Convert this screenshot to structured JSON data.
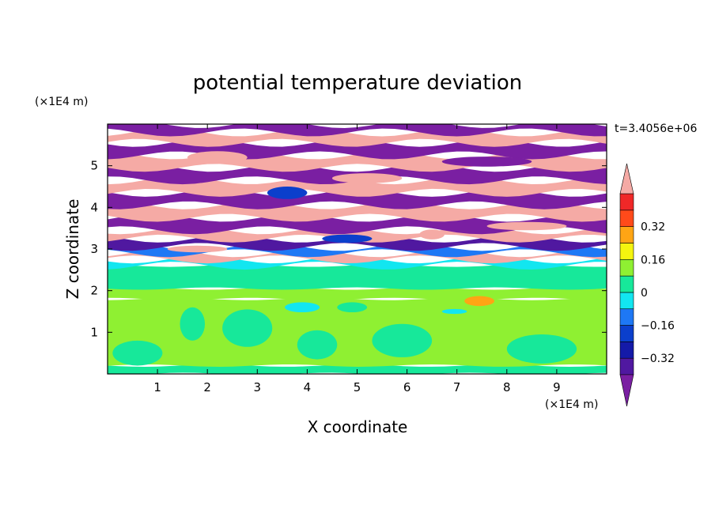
{
  "chart_data": {
    "type": "heatmap",
    "title": "potential temperature deviation",
    "xlabel": "X coordinate",
    "ylabel": "Z coordinate",
    "x_unit": "(×1E4 m)",
    "y_unit": "(×1E4 m)",
    "time_label": "t=3.4056e+06",
    "xlim": [
      0,
      10
    ],
    "ylim": [
      0,
      6
    ],
    "x_ticks": [
      "1",
      "2",
      "3",
      "4",
      "5",
      "6",
      "7",
      "8",
      "9"
    ],
    "y_ticks": [
      "1",
      "2",
      "3",
      "4",
      "5"
    ],
    "colorbar": {
      "tick_labels": [
        "0.32",
        "0.16",
        "0",
        "−0.16",
        "−0.32"
      ],
      "tick_values": [
        0.32,
        0.16,
        0,
        -0.16,
        -0.32
      ],
      "levels": [
        {
          "lo": null,
          "hi": -0.4,
          "color": "#7a1fa2"
        },
        {
          "lo": -0.4,
          "hi": -0.32,
          "color": "#5018a0"
        },
        {
          "lo": -0.32,
          "hi": -0.24,
          "color": "#141aa8"
        },
        {
          "lo": -0.24,
          "hi": -0.16,
          "color": "#0b3fcc"
        },
        {
          "lo": -0.16,
          "hi": -0.08,
          "color": "#1e78f5"
        },
        {
          "lo": -0.08,
          "hi": 0.0,
          "color": "#12e6f0"
        },
        {
          "lo": 0.0,
          "hi": 0.08,
          "color": "#17e89a"
        },
        {
          "lo": 0.08,
          "hi": 0.16,
          "color": "#8ff032"
        },
        {
          "lo": 0.16,
          "hi": 0.24,
          "color": "#f5f50f"
        },
        {
          "lo": 0.24,
          "hi": 0.32,
          "color": "#ffa514"
        },
        {
          "lo": 0.32,
          "hi": 0.4,
          "color": "#ff4a1a"
        },
        {
          "lo": 0.4,
          "hi": 0.48,
          "color": "#f02828"
        },
        {
          "lo": 0.48,
          "hi": null,
          "color": "#f5aaa5"
        }
      ]
    },
    "bands": [
      {
        "z0": 0.0,
        "z1": 0.2,
        "value": 0.04
      },
      {
        "z0": 0.2,
        "z1": 1.8,
        "value": 0.1
      },
      {
        "z0": 1.8,
        "z1": 2.05,
        "value": 0.12
      },
      {
        "z0": 2.05,
        "z1": 2.6,
        "value": 0.04
      },
      {
        "z0": 2.6,
        "z1": 2.75,
        "value": -0.04
      },
      {
        "z0": 2.75,
        "z1": 2.9,
        "value": 0.52
      },
      {
        "z0": 2.9,
        "z1": 3.05,
        "value": -0.12
      },
      {
        "z0": 3.05,
        "z1": 3.25,
        "value": -0.36
      },
      {
        "z0": 3.25,
        "z1": 3.45,
        "value": 0.52
      },
      {
        "z0": 3.45,
        "z1": 3.75,
        "value": -0.44
      },
      {
        "z0": 3.75,
        "z1": 4.05,
        "value": 0.52
      },
      {
        "z0": 4.05,
        "z1": 4.35,
        "value": -0.44
      },
      {
        "z0": 4.35,
        "z1": 4.65,
        "value": 0.52
      },
      {
        "z0": 4.65,
        "z1": 4.95,
        "value": -0.44
      },
      {
        "z0": 4.95,
        "z1": 5.25,
        "value": 0.52
      },
      {
        "z0": 5.25,
        "z1": 5.55,
        "value": -0.44
      },
      {
        "z0": 5.55,
        "z1": 5.8,
        "value": 0.52
      },
      {
        "z0": 5.8,
        "z1": 6.0,
        "value": -0.44
      }
    ],
    "features": [
      {
        "type": "blob",
        "x": 7.45,
        "z": 1.75,
        "rx": 0.3,
        "rz": 0.12,
        "value": 0.28
      },
      {
        "type": "blob",
        "x": 6.95,
        "z": 1.5,
        "rx": 0.25,
        "rz": 0.06,
        "value": -0.04
      },
      {
        "type": "blob",
        "x": 3.9,
        "z": 1.6,
        "rx": 0.35,
        "rz": 0.12,
        "value": -0.04
      },
      {
        "type": "blob",
        "x": 4.9,
        "z": 1.6,
        "rx": 0.3,
        "rz": 0.12,
        "value": 0.04
      },
      {
        "type": "blob",
        "x": 2.8,
        "z": 1.1,
        "rx": 0.5,
        "rz": 0.45,
        "value": 0.04
      },
      {
        "type": "blob",
        "x": 5.9,
        "z": 0.8,
        "rx": 0.6,
        "rz": 0.4,
        "value": 0.04
      },
      {
        "type": "blob",
        "x": 8.7,
        "z": 0.6,
        "rx": 0.7,
        "rz": 0.35,
        "value": 0.04
      },
      {
        "type": "blob",
        "x": 4.2,
        "z": 0.7,
        "rx": 0.4,
        "rz": 0.35,
        "value": 0.04
      },
      {
        "type": "blob",
        "x": 0.6,
        "z": 0.5,
        "rx": 0.5,
        "rz": 0.3,
        "value": 0.04
      },
      {
        "type": "blob",
        "x": 1.7,
        "z": 1.2,
        "rx": 0.25,
        "rz": 0.4,
        "value": 0.04
      },
      {
        "type": "blob",
        "x": 3.6,
        "z": 4.35,
        "rx": 0.4,
        "rz": 0.15,
        "value": -0.2
      },
      {
        "type": "blob",
        "x": 4.8,
        "z": 3.25,
        "rx": 0.5,
        "rz": 0.1,
        "value": -0.2
      },
      {
        "type": "blob",
        "x": 6.5,
        "z": 3.35,
        "rx": 0.25,
        "rz": 0.12,
        "value": 0.52
      },
      {
        "type": "blob",
        "x": 1.8,
        "z": 3.0,
        "rx": 0.6,
        "rz": 0.08,
        "value": 0.52
      },
      {
        "type": "blob",
        "x": 2.2,
        "z": 5.2,
        "rx": 0.6,
        "rz": 0.15,
        "value": 0.52
      },
      {
        "type": "blob",
        "x": 7.6,
        "z": 5.1,
        "rx": 0.9,
        "rz": 0.12,
        "value": -0.44
      },
      {
        "type": "blob",
        "x": 5.2,
        "z": 4.7,
        "rx": 0.7,
        "rz": 0.12,
        "value": 0.52
      },
      {
        "type": "blob",
        "x": 8.4,
        "z": 3.55,
        "rx": 0.8,
        "rz": 0.1,
        "value": 0.52
      }
    ]
  }
}
